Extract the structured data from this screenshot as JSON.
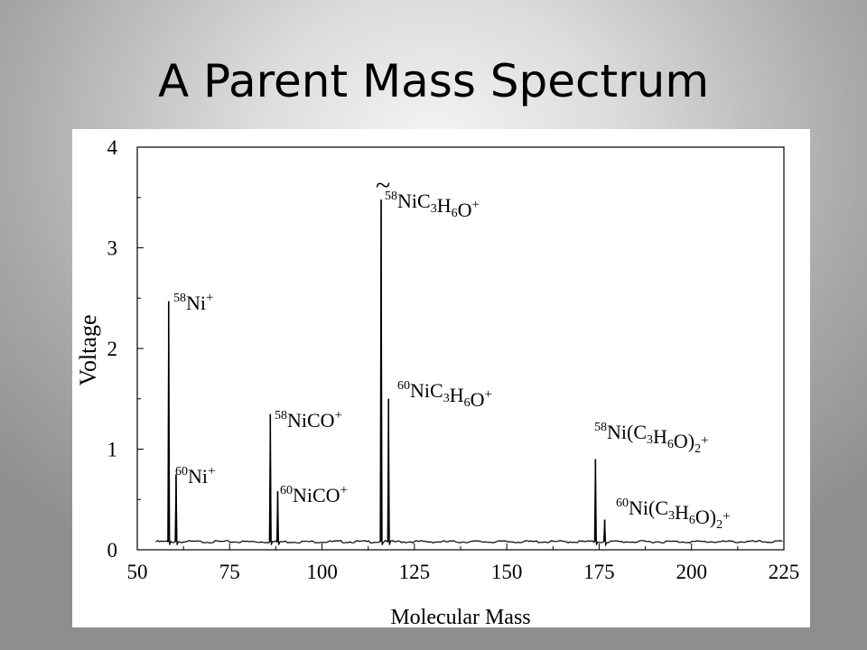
{
  "slide": {
    "title": "A Parent Mass Spectrum"
  },
  "chart_data": {
    "type": "line",
    "xlabel": "Molecular Mass",
    "ylabel": "Voltage",
    "xlim": [
      50,
      225
    ],
    "ylim": [
      0,
      4
    ],
    "x_ticks": [
      50,
      75,
      100,
      125,
      150,
      175,
      200,
      225
    ],
    "y_ticks": [
      0,
      1,
      2,
      3,
      4
    ],
    "grid": false,
    "baseline": 0.08,
    "peaks": [
      {
        "x": 58.5,
        "y": 2.47
      },
      {
        "x": 60.5,
        "y": 0.75
      },
      {
        "x": 86.0,
        "y": 1.35
      },
      {
        "x": 88.0,
        "y": 0.58
      },
      {
        "x": 116.0,
        "y": 3.48
      },
      {
        "x": 118.0,
        "y": 1.5
      },
      {
        "x": 174.0,
        "y": 0.9
      },
      {
        "x": 176.5,
        "y": 0.3
      }
    ],
    "annotations": [
      {
        "sup": "58",
        "text": "Ni",
        "tail": "+"
      },
      {
        "sup": "60",
        "text": "Ni",
        "tail": "+"
      },
      {
        "sup": "58",
        "text": "NiCO",
        "tail": "+"
      },
      {
        "sup": "60",
        "text": "NiCO",
        "tail": "+"
      },
      {
        "sup": "58",
        "text": "NiC3H6O",
        "tail": "+"
      },
      {
        "sup": "60",
        "text": "NiC3H6O",
        "tail": "+"
      },
      {
        "sup": "58",
        "text": "Ni(C3H6O)2",
        "tail": "+"
      },
      {
        "sup": "60",
        "text": "Ni(C3H6O)2",
        "tail": "+"
      }
    ],
    "break_mark": "~"
  }
}
